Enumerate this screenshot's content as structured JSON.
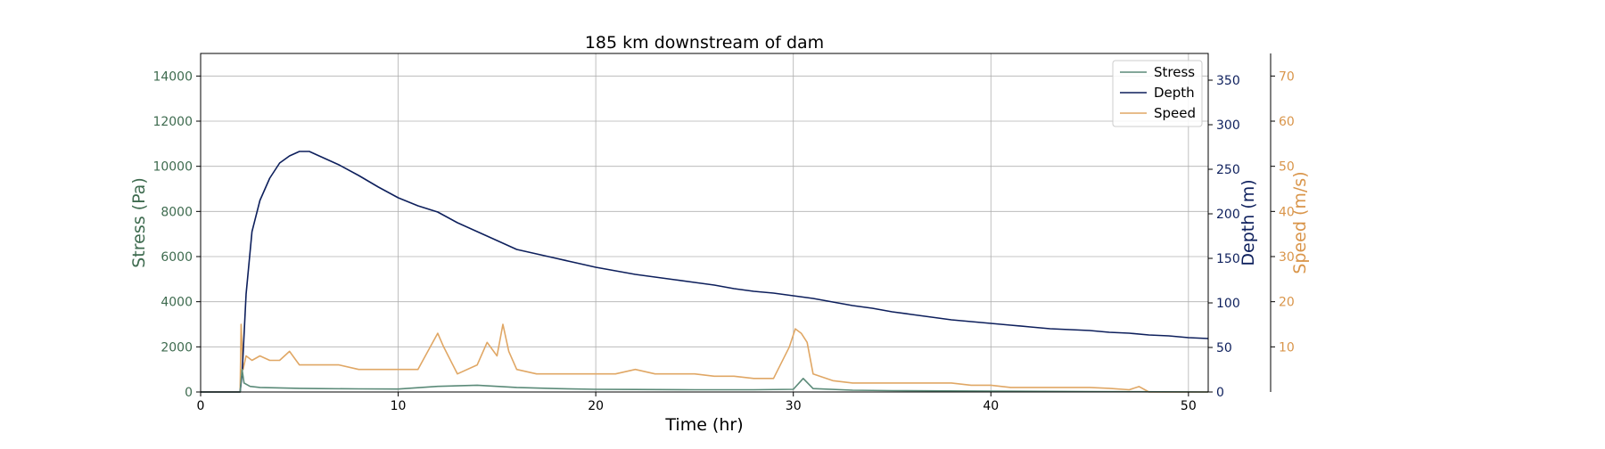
{
  "chart_data": {
    "type": "line",
    "title": "185 km downstream of dam",
    "xlabel": "Time (hr)",
    "xlim": [
      0,
      51
    ],
    "xticks": [
      0,
      10,
      20,
      30,
      40,
      50
    ],
    "grid": true,
    "legend_placement": "top-right",
    "axes": {
      "stress": {
        "label": "Stress (Pa)",
        "color": "#3e6b4f",
        "ylim": [
          0,
          15000
        ],
        "ticks": [
          0,
          2000,
          4000,
          6000,
          8000,
          10000,
          12000,
          14000
        ]
      },
      "depth": {
        "label": "Depth (m)",
        "color": "#0d1f5c",
        "ylim": [
          0,
          380
        ],
        "ticks": [
          0,
          50,
          100,
          150,
          200,
          250,
          300,
          350
        ]
      },
      "speed": {
        "label": "Speed (m/s)",
        "color": "#d9954a",
        "ylim": [
          0,
          75
        ],
        "ticks": [
          10,
          20,
          30,
          40,
          50,
          60,
          70
        ]
      }
    },
    "series": [
      {
        "name": "Stress",
        "axis": "stress",
        "color": "#5a8a78",
        "x": [
          0,
          2,
          2.1,
          2.2,
          2.5,
          3,
          4,
          5,
          6,
          8,
          10,
          12,
          14,
          16,
          18,
          20,
          22,
          25,
          28,
          30,
          30.5,
          31,
          33,
          35,
          40,
          45,
          47.5,
          51
        ],
        "y": [
          0,
          0,
          1000,
          400,
          250,
          200,
          180,
          160,
          150,
          140,
          130,
          250,
          300,
          200,
          150,
          120,
          110,
          100,
          100,
          120,
          600,
          150,
          80,
          60,
          40,
          20,
          10,
          0
        ]
      },
      {
        "name": "Depth",
        "axis": "depth",
        "color": "#0d1f5c",
        "x": [
          0,
          2,
          2.1,
          2.3,
          2.6,
          3,
          3.5,
          4,
          4.5,
          5,
          5.5,
          6,
          7,
          8,
          9,
          10,
          11,
          12,
          13,
          14,
          15,
          16,
          17,
          18,
          19,
          20,
          21,
          22,
          23,
          24,
          25,
          26,
          27,
          28,
          29,
          30,
          31,
          32,
          33,
          34,
          35,
          36,
          37,
          38,
          39,
          40,
          41,
          42,
          43,
          44,
          45,
          46,
          47,
          48,
          49,
          50,
          51
        ],
        "y": [
          0,
          0,
          20,
          110,
          180,
          215,
          240,
          257,
          265,
          270,
          270,
          265,
          255,
          243,
          230,
          218,
          209,
          202,
          190,
          180,
          170,
          160,
          155,
          150,
          145,
          140,
          136,
          132,
          129,
          126,
          123,
          120,
          116,
          113,
          111,
          108,
          105,
          101,
          97,
          94,
          90,
          87,
          84,
          81,
          79,
          77,
          75,
          73,
          71,
          70,
          69,
          67,
          66,
          64,
          63,
          61,
          60
        ]
      },
      {
        "name": "Speed",
        "axis": "speed",
        "color": "#e0a765",
        "x": [
          0,
          2,
          2.05,
          2.15,
          2.3,
          2.6,
          3,
          3.5,
          4,
          4.5,
          5,
          6,
          7,
          8,
          9,
          10,
          11,
          11.5,
          12,
          12.3,
          13,
          14,
          14.5,
          15,
          15.3,
          15.6,
          16,
          17,
          18,
          19,
          20,
          21,
          22,
          23,
          24,
          25,
          26,
          27,
          28,
          29,
          29.8,
          30.1,
          30.4,
          30.7,
          31,
          32,
          33,
          34,
          35,
          36,
          37,
          38,
          39,
          40,
          41,
          42,
          43,
          44,
          45,
          46,
          47,
          47.5,
          48,
          51
        ],
        "y": [
          0,
          0,
          15,
          5,
          8,
          7,
          8,
          7,
          7,
          9,
          6,
          6,
          6,
          5,
          5,
          5,
          5,
          9,
          13,
          10,
          4,
          6,
          11,
          8,
          15,
          9,
          5,
          4,
          4,
          4,
          4,
          4,
          5,
          4,
          4,
          4,
          3.5,
          3.5,
          3,
          3,
          10,
          14,
          13,
          11,
          4,
          2.5,
          2,
          2,
          2,
          2,
          2,
          2,
          1.5,
          1.5,
          1,
          1,
          1,
          1,
          1,
          0.8,
          0.5,
          1.2,
          0,
          0
        ]
      }
    ]
  }
}
